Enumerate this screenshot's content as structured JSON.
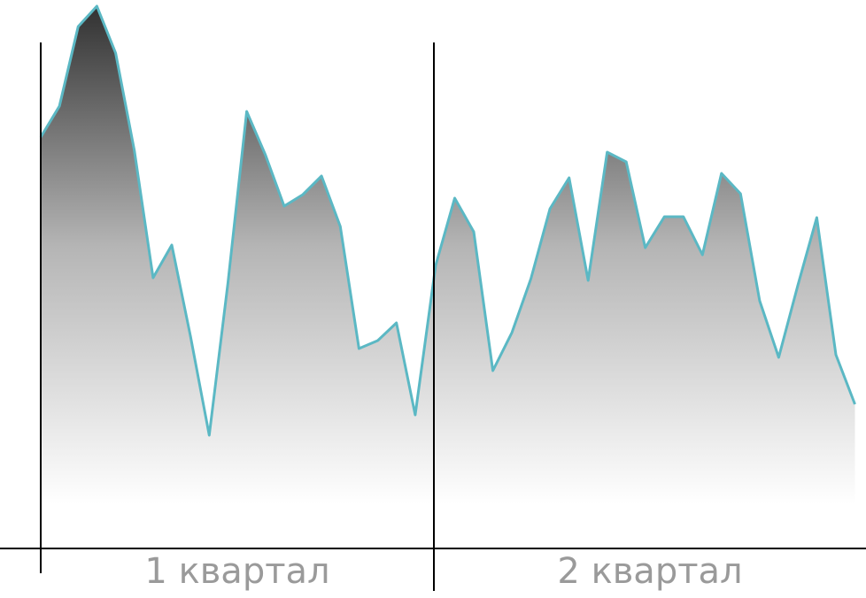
{
  "chart_data": {
    "type": "area",
    "color": "#5bb8c4",
    "ylim": [
      0,
      620
    ],
    "groups": [
      {
        "label": "1 квартал",
        "values": [
          465,
          500,
          590,
          613,
          560,
          450,
          306,
          343,
          240,
          128,
          300,
          494,
          445,
          387,
          400,
          421,
          364,
          226,
          235,
          255,
          151
        ]
      },
      {
        "label": "2 квартал",
        "values": [
          320,
          396,
          358,
          201,
          244,
          305,
          384,
          419,
          303,
          448,
          437,
          340,
          375,
          375,
          332,
          424,
          401,
          280,
          216,
          297,
          374,
          219,
          163
        ]
      }
    ]
  }
}
